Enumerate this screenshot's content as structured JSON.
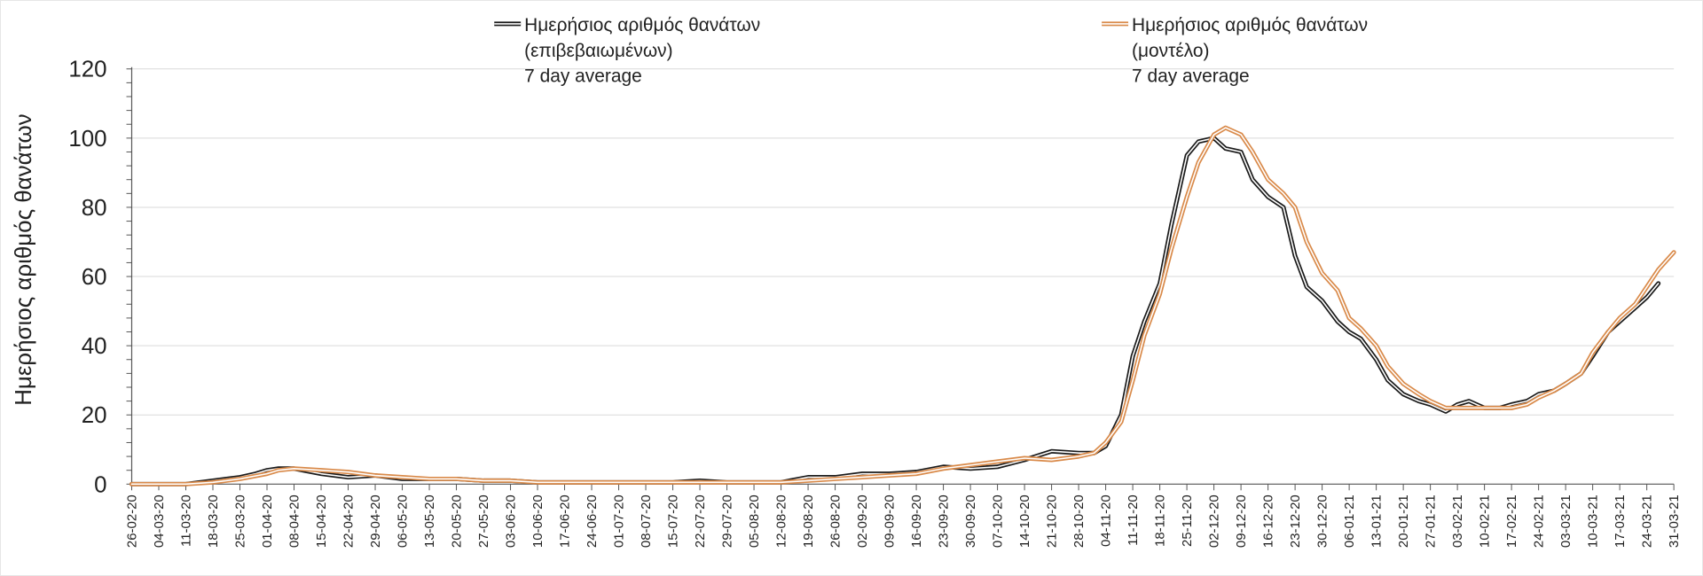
{
  "chart_data": {
    "type": "line",
    "title": "",
    "xlabel": "",
    "ylabel": "Ημερήσιος αριθμός θανάτων",
    "ylim": [
      0,
      120
    ],
    "yticks": [
      0,
      20,
      40,
      60,
      80,
      100,
      120
    ],
    "grid": "horizontal",
    "legend_position": "top",
    "xtick_labels": [
      "26-02-20",
      "04-03-20",
      "11-03-20",
      "18-03-20",
      "25-03-20",
      "01-04-20",
      "08-04-20",
      "15-04-20",
      "22-04-20",
      "29-04-20",
      "06-05-20",
      "13-05-20",
      "20-05-20",
      "27-05-20",
      "03-06-20",
      "10-06-20",
      "17-06-20",
      "24-06-20",
      "01-07-20",
      "08-07-20",
      "15-07-20",
      "22-07-20",
      "29-07-20",
      "05-08-20",
      "12-08-20",
      "19-08-20",
      "26-08-20",
      "02-09-20",
      "09-09-20",
      "16-09-20",
      "23-09-20",
      "30-09-20",
      "07-10-20",
      "14-10-20",
      "21-10-20",
      "28-10-20",
      "04-11-20",
      "11-11-20",
      "18-11-20",
      "25-11-20",
      "02-12-20",
      "09-12-20",
      "16-12-20",
      "23-12-20",
      "30-12-20",
      "06-01-21",
      "13-01-21",
      "20-01-21",
      "27-01-21",
      "03-02-21",
      "10-02-21",
      "17-02-21",
      "24-02-21",
      "03-03-21",
      "10-03-21",
      "17-03-21",
      "24-03-21",
      "31-03-21"
    ],
    "series": [
      {
        "name_lines": [
          "Ημερήσιος αριθμός θανάτων",
          "(επιβεβαιωμένων)",
          "7 day average"
        ],
        "color": "#1a1a1a",
        "x_dates": [
          "26-02-20",
          "11-03-20",
          "18-03-20",
          "25-03-20",
          "29-03-20",
          "01-04-20",
          "04-04-20",
          "08-04-20",
          "15-04-20",
          "22-04-20",
          "29-04-20",
          "06-05-20",
          "13-05-20",
          "20-05-20",
          "27-05-20",
          "03-06-20",
          "10-06-20",
          "17-06-20",
          "24-06-20",
          "01-07-20",
          "15-07-20",
          "22-07-20",
          "29-07-20",
          "05-08-20",
          "12-08-20",
          "19-08-20",
          "26-08-20",
          "02-09-20",
          "09-09-20",
          "16-09-20",
          "23-09-20",
          "30-09-20",
          "07-10-20",
          "14-10-20",
          "21-10-20",
          "28-10-20",
          "01-11-20",
          "04-11-20",
          "08-11-20",
          "11-11-20",
          "14-11-20",
          "18-11-20",
          "21-11-20",
          "25-11-20",
          "28-11-20",
          "02-12-20",
          "05-12-20",
          "09-12-20",
          "12-12-20",
          "16-12-20",
          "20-12-20",
          "23-12-20",
          "26-12-20",
          "30-12-20",
          "03-01-21",
          "06-01-21",
          "09-01-21",
          "13-01-21",
          "16-01-21",
          "20-01-21",
          "24-01-21",
          "27-01-21",
          "31-01-21",
          "03-02-21",
          "06-02-21",
          "10-02-21",
          "14-02-21",
          "17-02-21",
          "21-02-21",
          "24-02-21",
          "28-02-21",
          "03-03-21",
          "07-03-21",
          "10-03-21",
          "14-03-21",
          "17-03-21",
          "21-03-21",
          "24-03-21",
          "27-03-21"
        ],
        "y": [
          0,
          0,
          1,
          2,
          3,
          4,
          4.5,
          4.5,
          3,
          2,
          2.5,
          1.5,
          1.5,
          1.5,
          1,
          1,
          0.5,
          0.5,
          0.5,
          0.5,
          0.5,
          1,
          0.5,
          0.5,
          0.5,
          2,
          2,
          3,
          3,
          3.5,
          5,
          4.5,
          5,
          7,
          9.5,
          9,
          9,
          11,
          20,
          37,
          47,
          58,
          75,
          95,
          99,
          100,
          97,
          96,
          88,
          83,
          80,
          66,
          57,
          53,
          47,
          44,
          42,
          36,
          30,
          26,
          24,
          23,
          21,
          23,
          24,
          22,
          22,
          23,
          24,
          26,
          27,
          29,
          32,
          37,
          44,
          47,
          51,
          54,
          58
        ]
      },
      {
        "name_lines": [
          "Ημερήσιος αριθμός θανάτων",
          "(μοντέλο)",
          "7 day average"
        ],
        "color": "#d98a4a",
        "x_dates": [
          "26-02-20",
          "11-03-20",
          "18-03-20",
          "25-03-20",
          "01-04-20",
          "04-04-20",
          "08-04-20",
          "15-04-20",
          "22-04-20",
          "29-04-20",
          "06-05-20",
          "13-05-20",
          "20-05-20",
          "27-05-20",
          "03-06-20",
          "10-06-20",
          "17-06-20",
          "24-06-20",
          "01-07-20",
          "15-07-20",
          "29-07-20",
          "05-08-20",
          "12-08-20",
          "19-08-20",
          "26-08-20",
          "02-09-20",
          "09-09-20",
          "16-09-20",
          "23-09-20",
          "30-09-20",
          "07-10-20",
          "14-10-20",
          "21-10-20",
          "28-10-20",
          "01-11-20",
          "04-11-20",
          "08-11-20",
          "11-11-20",
          "14-11-20",
          "18-11-20",
          "21-11-20",
          "25-11-20",
          "28-11-20",
          "02-12-20",
          "05-12-20",
          "09-12-20",
          "12-12-20",
          "16-12-20",
          "20-12-20",
          "23-12-20",
          "26-12-20",
          "30-12-20",
          "03-01-21",
          "06-01-21",
          "09-01-21",
          "13-01-21",
          "16-01-21",
          "20-01-21",
          "24-01-21",
          "27-01-21",
          "31-01-21",
          "03-02-21",
          "06-02-21",
          "10-02-21",
          "14-02-21",
          "17-02-21",
          "21-02-21",
          "24-02-21",
          "28-02-21",
          "03-03-21",
          "07-03-21",
          "10-03-21",
          "14-03-21",
          "17-03-21",
          "21-03-21",
          "24-03-21",
          "27-03-21",
          "31-03-21"
        ],
        "y": [
          0,
          0,
          0.5,
          1.5,
          3,
          4,
          4.5,
          4,
          3.5,
          2.5,
          2,
          1.5,
          1.5,
          1,
          1,
          0.5,
          0.5,
          0.5,
          0.5,
          0.5,
          0.5,
          0.5,
          0.5,
          1,
          1.5,
          2,
          2.5,
          3,
          4.5,
          5.5,
          6.5,
          7.5,
          7,
          8,
          9,
          12,
          18,
          30,
          43,
          55,
          68,
          83,
          93,
          101,
          103,
          101,
          96,
          88,
          84,
          80,
          70,
          61,
          56,
          48,
          45,
          40,
          34,
          29,
          26,
          24,
          22,
          22,
          22,
          22,
          22,
          22,
          23,
          25,
          27,
          29,
          32,
          38,
          44,
          48,
          52,
          57,
          62,
          67
        ]
      }
    ]
  }
}
